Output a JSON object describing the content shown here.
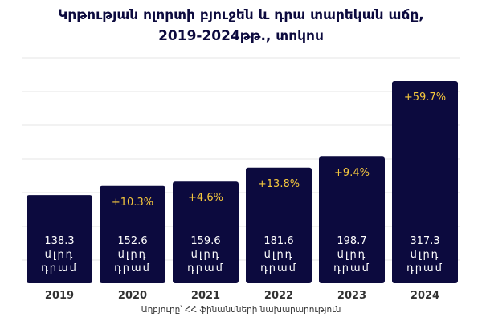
{
  "title_line1": "Կրթության ոլորտի բյուջեն և դրա տարեկան աճը,",
  "title_line2": "2019-2024թթ., տոկոս",
  "source": "Աղբյուրը՝ ՀՀ ֆինանսների նախարարություն",
  "colors": {
    "bar": "#0c0a3e",
    "growth_label": "#f5c73d",
    "value_label": "#ffffff",
    "year_label": "#333333",
    "grid": "#e6e6e6"
  },
  "chart_data": {
    "type": "bar",
    "title": "Կրթության ոլորտի բյուջեն և դրա տարեկան աճը, 2019-2024թթ., տոկոս",
    "categories": [
      "2019",
      "2020",
      "2021",
      "2022",
      "2023",
      "2024"
    ],
    "values": [
      138.3,
      152.6,
      159.6,
      181.6,
      198.7,
      317.3
    ],
    "value_labels": [
      "138.3",
      "152.6",
      "159.6",
      "181.6",
      "198.7",
      "317.3"
    ],
    "unit_line1": "մլրդ",
    "unit_line2": "դրամ",
    "growth_labels": [
      "",
      "+10.3%",
      "+4.6%",
      "+13.8%",
      "+9.4%",
      "+59.7%"
    ],
    "grid": true,
    "legend": "none"
  }
}
